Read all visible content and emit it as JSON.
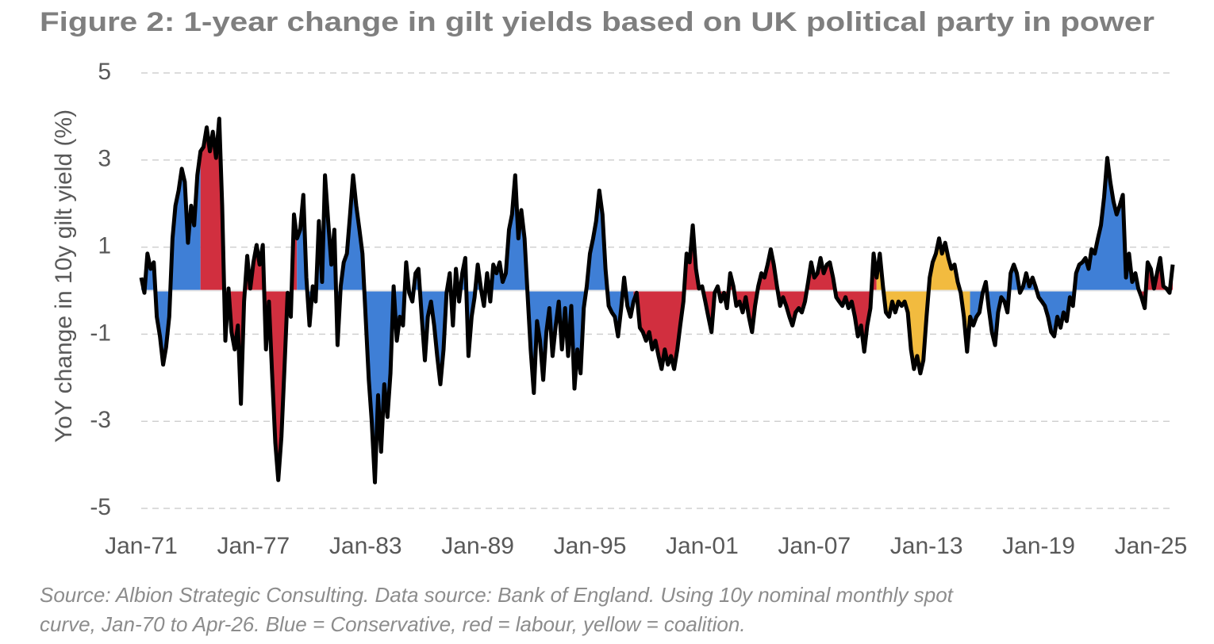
{
  "chart_data": {
    "type": "line",
    "title": "Figure 2: 1-year change in gilt yields based on UK political party in power",
    "y_label": "YoY change in 10y gilt yield (%)",
    "source": [
      "Source: Albion Strategic Consulting. Data source: Bank of England. Using 10y nominal monthly spot",
      "curve, Jan-70 to Apr-26. Blue = Conservative, red = labour, yellow = coalition."
    ],
    "color": "#000000",
    "grid": true,
    "xlim": [
      1971,
      2026.17
    ],
    "ylim": [
      -5,
      5
    ],
    "yticks": [
      5,
      3,
      1,
      -1,
      -3,
      -5
    ],
    "xticks": [
      {
        "value": 1971,
        "label": "Jan-71"
      },
      {
        "value": 1977,
        "label": "Jan-77"
      },
      {
        "value": 1983,
        "label": "Jan-83"
      },
      {
        "value": 1989,
        "label": "Jan-89"
      },
      {
        "value": 1995,
        "label": "Jan-95"
      },
      {
        "value": 2001,
        "label": "Jan-01"
      },
      {
        "value": 2007,
        "label": "Jan-07"
      },
      {
        "value": 2013,
        "label": "Jan-13"
      },
      {
        "value": 2019,
        "label": "Jan-19"
      },
      {
        "value": 2025,
        "label": "Jan-25"
      }
    ],
    "periods": [
      {
        "start": 1971,
        "end": 1974.17,
        "color": "#3f7fd6"
      },
      {
        "start": 1974.17,
        "end": 1979.33,
        "color": "#d12f3f"
      },
      {
        "start": 1979.33,
        "end": 1997.33,
        "color": "#3f7fd6"
      },
      {
        "start": 1997.33,
        "end": 2010.33,
        "color": "#d12f3f"
      },
      {
        "start": 2010.33,
        "end": 2015.33,
        "color": "#f2bb3f"
      },
      {
        "start": 2015.33,
        "end": 2024.5,
        "color": "#3f7fd6"
      },
      {
        "start": 2024.5,
        "end": 2026.17,
        "color": "#d12f3f"
      }
    ],
    "x": [
      1971,
      1971.17,
      1971.33,
      1971.5,
      1971.67,
      1971.83,
      1972,
      1972.17,
      1972.33,
      1972.5,
      1972.67,
      1972.83,
      1973,
      1973.17,
      1973.33,
      1973.5,
      1973.67,
      1973.83,
      1974,
      1974.17,
      1974.33,
      1974.5,
      1974.67,
      1974.83,
      1975,
      1975.17,
      1975.33,
      1975.5,
      1975.67,
      1975.83,
      1976,
      1976.17,
      1976.33,
      1976.5,
      1976.67,
      1976.83,
      1977,
      1977.17,
      1977.33,
      1977.5,
      1977.67,
      1977.83,
      1978,
      1978.17,
      1978.33,
      1978.5,
      1978.67,
      1978.83,
      1979,
      1979.17,
      1979.33,
      1979.5,
      1979.67,
      1979.83,
      1980,
      1980.17,
      1980.33,
      1980.5,
      1980.67,
      1980.83,
      1981,
      1981.17,
      1981.33,
      1981.5,
      1981.67,
      1981.83,
      1982,
      1982.17,
      1982.33,
      1982.5,
      1982.67,
      1982.83,
      1983,
      1983.17,
      1983.33,
      1983.5,
      1983.67,
      1983.83,
      1984,
      1984.17,
      1984.33,
      1984.5,
      1984.67,
      1984.83,
      1985,
      1985.17,
      1985.33,
      1985.5,
      1985.67,
      1985.83,
      1986,
      1986.17,
      1986.33,
      1986.5,
      1986.67,
      1986.83,
      1987,
      1987.17,
      1987.33,
      1987.5,
      1987.67,
      1987.83,
      1988,
      1988.17,
      1988.33,
      1988.5,
      1988.67,
      1988.83,
      1989,
      1989.17,
      1989.33,
      1989.5,
      1989.67,
      1989.83,
      1990,
      1990.17,
      1990.33,
      1990.5,
      1990.67,
      1990.83,
      1991,
      1991.17,
      1991.33,
      1991.5,
      1991.67,
      1991.83,
      1992,
      1992.17,
      1992.33,
      1992.5,
      1992.67,
      1992.83,
      1993,
      1993.17,
      1993.33,
      1993.5,
      1993.67,
      1993.83,
      1994,
      1994.17,
      1994.33,
      1994.5,
      1994.67,
      1994.83,
      1995,
      1995.17,
      1995.33,
      1995.5,
      1995.67,
      1995.83,
      1996,
      1996.17,
      1996.33,
      1996.5,
      1996.67,
      1996.83,
      1997,
      1997.17,
      1997.33,
      1997.5,
      1997.67,
      1997.83,
      1998,
      1998.17,
      1998.33,
      1998.5,
      1998.67,
      1998.83,
      1999,
      1999.17,
      1999.33,
      1999.5,
      1999.67,
      1999.83,
      2000,
      2000.17,
      2000.33,
      2000.5,
      2000.67,
      2000.83,
      2001,
      2001.17,
      2001.33,
      2001.5,
      2001.67,
      2001.83,
      2002,
      2002.17,
      2002.33,
      2002.5,
      2002.67,
      2002.83,
      2003,
      2003.17,
      2003.33,
      2003.5,
      2003.67,
      2003.83,
      2004,
      2004.17,
      2004.33,
      2004.5,
      2004.67,
      2004.83,
      2005,
      2005.17,
      2005.33,
      2005.5,
      2005.67,
      2005.83,
      2006,
      2006.17,
      2006.33,
      2006.5,
      2006.67,
      2006.83,
      2007,
      2007.17,
      2007.33,
      2007.5,
      2007.67,
      2007.83,
      2008,
      2008.17,
      2008.33,
      2008.5,
      2008.67,
      2008.83,
      2009,
      2009.17,
      2009.33,
      2009.5,
      2009.67,
      2009.83,
      2010,
      2010.17,
      2010.33,
      2010.5,
      2010.67,
      2010.83,
      2011,
      2011.17,
      2011.33,
      2011.5,
      2011.67,
      2011.83,
      2012,
      2012.17,
      2012.33,
      2012.5,
      2012.67,
      2012.83,
      2013,
      2013.17,
      2013.33,
      2013.5,
      2013.67,
      2013.83,
      2014,
      2014.17,
      2014.33,
      2014.5,
      2014.67,
      2014.83,
      2015,
      2015.17,
      2015.33,
      2015.5,
      2015.67,
      2015.83,
      2016,
      2016.17,
      2016.33,
      2016.5,
      2016.67,
      2016.83,
      2017,
      2017.17,
      2017.33,
      2017.5,
      2017.67,
      2017.83,
      2018,
      2018.17,
      2018.33,
      2018.5,
      2018.67,
      2018.83,
      2019,
      2019.17,
      2019.33,
      2019.5,
      2019.67,
      2019.83,
      2020,
      2020.17,
      2020.33,
      2020.5,
      2020.67,
      2020.83,
      2021,
      2021.17,
      2021.33,
      2021.5,
      2021.67,
      2021.83,
      2022,
      2022.17,
      2022.33,
      2022.5,
      2022.67,
      2022.83,
      2023,
      2023.17,
      2023.33,
      2023.5,
      2023.67,
      2023.83,
      2024,
      2024.17,
      2024.33,
      2024.5,
      2024.67,
      2024.83,
      2025,
      2025.17,
      2025.33,
      2025.5,
      2025.67,
      2025.83,
      2026,
      2026.17
    ],
    "values": [
      0.3,
      -0.05,
      0.85,
      0.5,
      0.65,
      -0.6,
      -1.05,
      -1.7,
      -1.3,
      -0.6,
      1.2,
      1.95,
      2.3,
      2.8,
      2.5,
      1.1,
      1.95,
      1.5,
      2.65,
      3.2,
      3.3,
      3.75,
      3.2,
      3.65,
      3.05,
      3.95,
      1.95,
      -1.15,
      0.05,
      -0.95,
      -1.35,
      -0.8,
      -2.6,
      -0.25,
      0.8,
      0.05,
      0.65,
      1.05,
      0.6,
      1.05,
      -1.35,
      -0.25,
      -1.9,
      -3.5,
      -4.35,
      -3.35,
      -1.7,
      -0.05,
      -0.6,
      1.75,
      1.2,
      1.4,
      2.2,
      0.3,
      -0.8,
      0.1,
      -0.25,
      1.6,
      0.2,
      2.65,
      1.6,
      0.6,
      1.4,
      -1.25,
      0.1,
      0.65,
      0.85,
      1.75,
      2.65,
      1.95,
      1.4,
      0.85,
      -0.6,
      -2.05,
      -3.0,
      -4.4,
      -2.4,
      -3.7,
      -2.15,
      -2.9,
      -1.9,
      0.1,
      -1.15,
      -0.6,
      -0.8,
      0.65,
      -0.05,
      -0.25,
      0.4,
      0.5,
      -0.6,
      -1.6,
      -0.6,
      -0.25,
      -0.8,
      -1.5,
      -2.15,
      -1.35,
      -0.05,
      0.4,
      -0.8,
      0.5,
      -0.25,
      0.4,
      0.75,
      -1.5,
      -0.6,
      -0.15,
      0.6,
      0.05,
      -0.35,
      0.4,
      -0.25,
      0.6,
      0.4,
      0.65,
      0.2,
      0.4,
      1.4,
      1.75,
      2.65,
      1.2,
      1.85,
      1.2,
      -0.15,
      -1.35,
      -2.35,
      -0.7,
      -1.15,
      -2.05,
      -0.95,
      -0.4,
      -1.5,
      -0.8,
      -0.25,
      -1.35,
      -0.4,
      -1.5,
      -0.35,
      -2.25,
      -1.35,
      -1.9,
      -0.4,
      0.1,
      0.85,
      1.2,
      1.6,
      2.3,
      1.75,
      0.5,
      -0.35,
      -0.5,
      -0.6,
      -1.05,
      -0.4,
      0.3,
      -0.35,
      -0.6,
      -0.25,
      -0.05,
      -0.85,
      -0.95,
      -1.15,
      -0.95,
      -1.35,
      -1.15,
      -1.5,
      -1.8,
      -1.35,
      -1.7,
      -1.5,
      -1.8,
      -1.35,
      -0.8,
      -0.25,
      0.85,
      0.65,
      1.5,
      0.5,
      0.05,
      0.1,
      -0.25,
      -0.6,
      -0.95,
      -0.05,
      0.1,
      -0.25,
      -0.05,
      -0.4,
      0.4,
      0.1,
      -0.35,
      -0.25,
      -0.5,
      -0.15,
      -0.6,
      -0.95,
      -0.35,
      0.1,
      0.4,
      0.3,
      0.6,
      0.95,
      0.6,
      0.1,
      -0.35,
      -0.15,
      -0.35,
      -0.6,
      -0.8,
      -0.5,
      -0.4,
      -0.5,
      -0.25,
      0.2,
      0.65,
      0.3,
      0.4,
      0.75,
      0.4,
      0.6,
      0.65,
      0.3,
      -0.15,
      -0.25,
      -0.35,
      -0.15,
      -0.4,
      -0.25,
      -0.6,
      -1.05,
      -0.8,
      -1.4,
      -0.8,
      -0.4,
      0.85,
      0.3,
      0.85,
      0.1,
      -0.5,
      -0.6,
      -0.25,
      -0.5,
      -0.25,
      -0.35,
      -0.25,
      -0.5,
      -1.35,
      -1.8,
      -1.5,
      -1.9,
      -1.6,
      -0.6,
      0.3,
      0.65,
      0.85,
      1.2,
      0.85,
      1.1,
      0.75,
      0.5,
      0.6,
      0.2,
      -0.05,
      -0.6,
      -1.4,
      -0.6,
      -0.8,
      -0.6,
      -0.5,
      -0.05,
      0.2,
      -0.4,
      -0.95,
      -1.25,
      -0.5,
      -0.15,
      -0.25,
      -0.5,
      0.4,
      0.6,
      0.4,
      -0.05,
      0.1,
      0.4,
      0.1,
      0.3,
      0.1,
      -0.15,
      -0.25,
      -0.35,
      -0.6,
      -0.95,
      -1.05,
      -0.6,
      -0.85,
      -0.5,
      -0.7,
      -0.15,
      -0.35,
      0.4,
      0.6,
      0.65,
      0.75,
      0.5,
      0.95,
      0.85,
      1.2,
      1.5,
      2.15,
      3.05,
      2.5,
      2.05,
      1.75,
      1.95,
      2.2,
      0.3,
      0.85,
      0.2,
      0.4,
      0.05,
      -0.15,
      -0.4,
      0.65,
      0.5,
      0.05,
      0.4,
      0.75,
      0.1,
      0.05,
      -0.05,
      0.6
    ]
  }
}
